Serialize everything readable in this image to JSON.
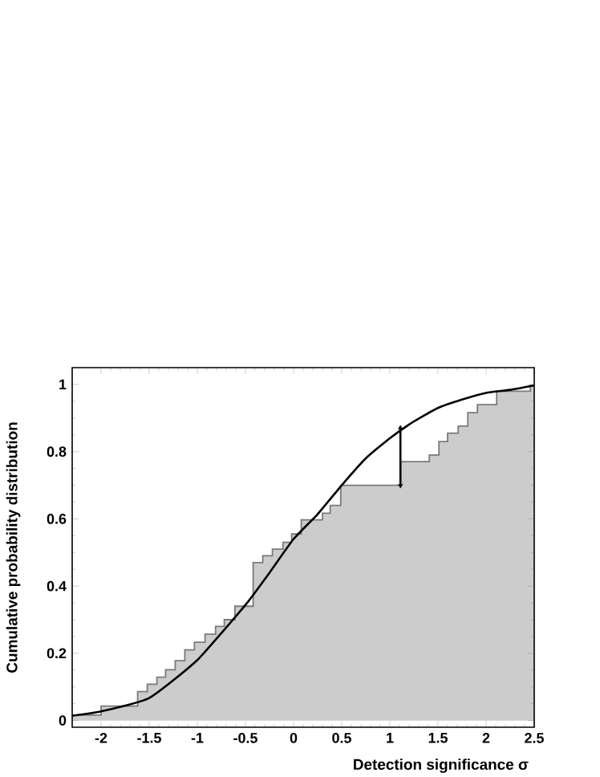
{
  "chart_data": {
    "type": "area",
    "xlabel": "Detection significance σ",
    "ylabel": "Cumulative probability distribution",
    "xlim": [
      -2.3,
      2.5
    ],
    "ylim": [
      -0.02,
      1.05
    ],
    "xticks": [
      -2,
      -1.5,
      -1,
      -0.5,
      0,
      0.5,
      1,
      1.5,
      2,
      2.5
    ],
    "yticks": [
      0,
      0.2,
      0.4,
      0.6,
      0.8,
      1
    ],
    "series": [
      {
        "color": "#cccccc",
        "x": [
          -2.3,
          -2.0,
          -1.62,
          -1.52,
          -1.42,
          -1.33,
          -1.23,
          -1.13,
          -1.03,
          -0.92,
          -0.81,
          -0.72,
          -0.61,
          -0.42,
          -0.32,
          -0.22,
          -0.11,
          -0.02,
          0.08,
          0.3,
          0.38,
          0.49,
          1.11,
          1.41,
          1.51,
          1.6,
          1.71,
          1.81,
          1.91,
          2.11,
          2.46,
          2.5
        ],
        "values": [
          0.016,
          0.043,
          0.086,
          0.108,
          0.129,
          0.151,
          0.178,
          0.21,
          0.233,
          0.257,
          0.28,
          0.3,
          0.34,
          0.47,
          0.49,
          0.51,
          0.53,
          0.555,
          0.597,
          0.617,
          0.64,
          0.7,
          0.77,
          0.79,
          0.83,
          0.855,
          0.876,
          0.916,
          0.94,
          0.98,
          0.997,
          0.997
        ]
      },
      {
        "type": "line",
        "color": "#000000",
        "x": [
          -2.3,
          -2.0,
          -1.5,
          -1.0,
          -0.5,
          -0.25,
          0,
          0.25,
          0.5,
          0.75,
          1.0,
          1.25,
          1.5,
          1.75,
          2.0,
          2.25,
          2.5
        ],
        "values": [
          0.014,
          0.027,
          0.067,
          0.18,
          0.344,
          0.44,
          0.54,
          0.614,
          0.7,
          0.78,
          0.84,
          0.89,
          0.93,
          0.955,
          0.975,
          0.984,
          0.997
        ]
      },
      {
        "type": "line",
        "color": "#000000",
        "marker": "diamond",
        "x": [
          1.11,
          1.11
        ],
        "values": [
          0.7,
          0.87
        ]
      }
    ]
  }
}
